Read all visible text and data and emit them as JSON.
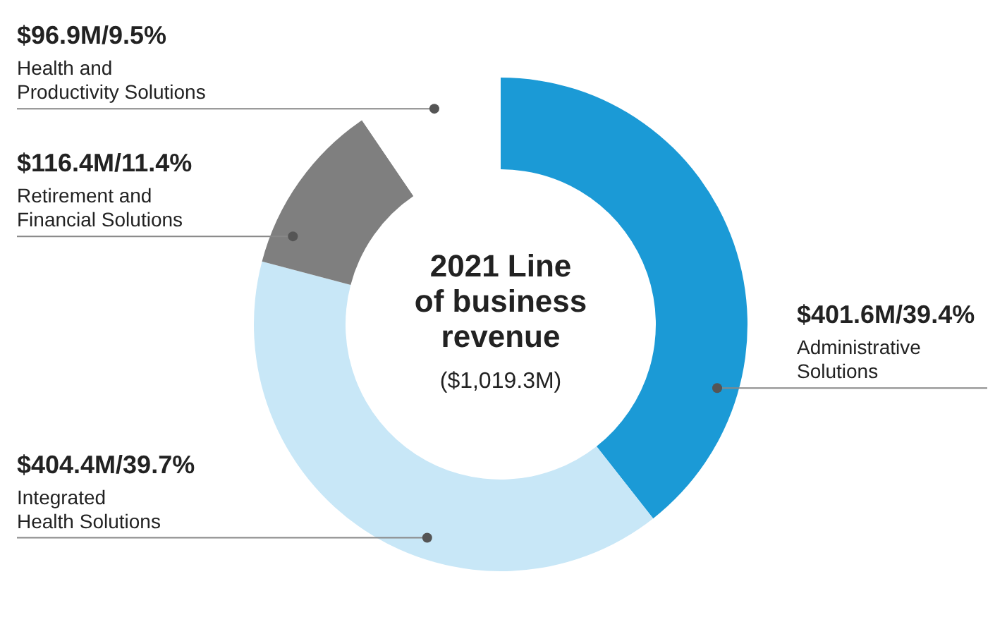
{
  "chart_data": {
    "type": "donut",
    "title": "2021 Line of business revenue",
    "subtitle": "($1,019.3M)",
    "categories": [
      "Administrative Solutions",
      "Integrated Health Solutions",
      "Retirement and Financial Solutions",
      "Health and Productivity Solutions"
    ],
    "values": [
      39.4,
      39.7,
      11.4,
      9.5
    ],
    "colors": [
      "#1b9ad6",
      "#c8e7f7",
      "#7f7f7f",
      "#ffffff"
    ],
    "value_labels": [
      "$401.6M/39.4%",
      "$404.4M/39.7%",
      "$116.4M/11.4%",
      "$96.9M/9.5%"
    ]
  }
}
